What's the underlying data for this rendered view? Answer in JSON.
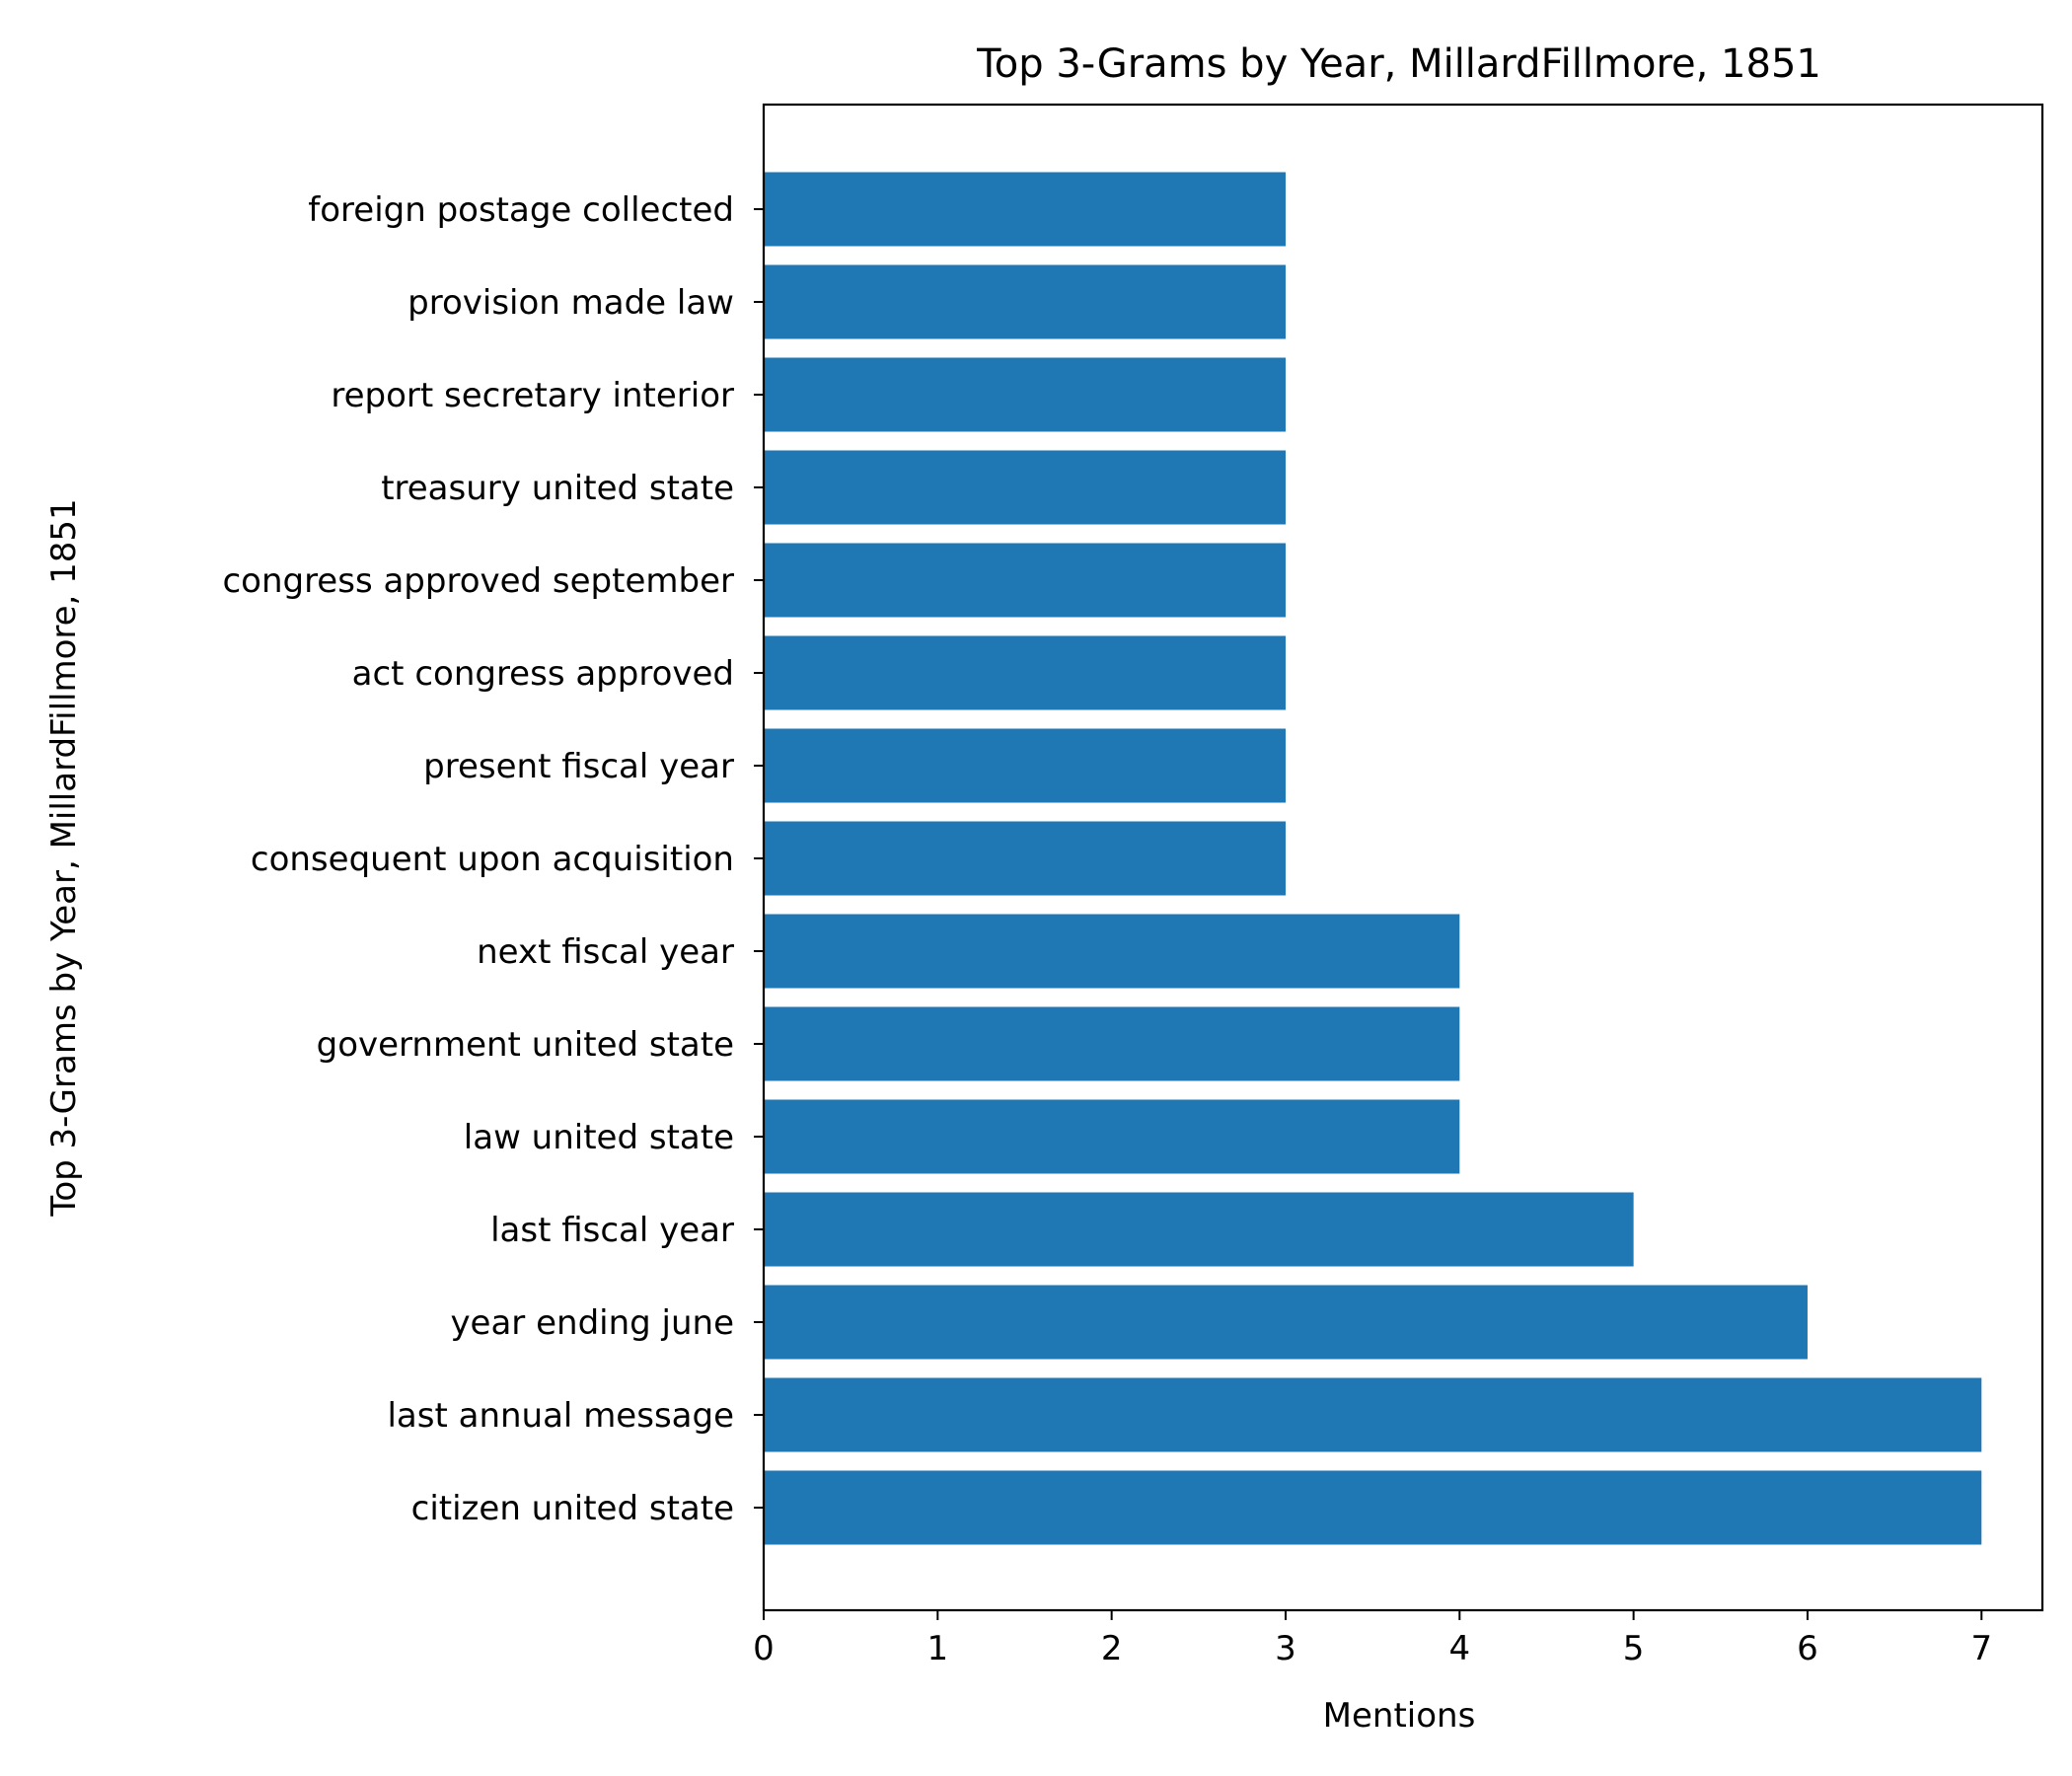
{
  "chart_data": {
    "type": "bar",
    "orientation": "horizontal",
    "title": "Top 3-Grams by Year, MillardFillmore, 1851",
    "xlabel": "Mentions",
    "ylabel": "Top 3-Grams by Year, MillardFillmore, 1851",
    "categories": [
      "citizen united state",
      "last annual message",
      "year ending june",
      "last fiscal year",
      "law united state",
      "government united state",
      "next fiscal year",
      "consequent upon acquisition",
      "present fiscal year",
      "act congress approved",
      "congress approved september",
      "treasury united state",
      "report secretary interior",
      "provision made law",
      "foreign postage collected"
    ],
    "values": [
      7,
      7,
      6,
      5,
      4,
      4,
      4,
      3,
      3,
      3,
      3,
      3,
      3,
      3,
      3
    ],
    "xlim": [
      0,
      7.35
    ],
    "xticks": [
      "0",
      "1",
      "2",
      "3",
      "4",
      "5",
      "6",
      "7"
    ],
    "grid": false,
    "bar_color": "#1f77b4"
  }
}
